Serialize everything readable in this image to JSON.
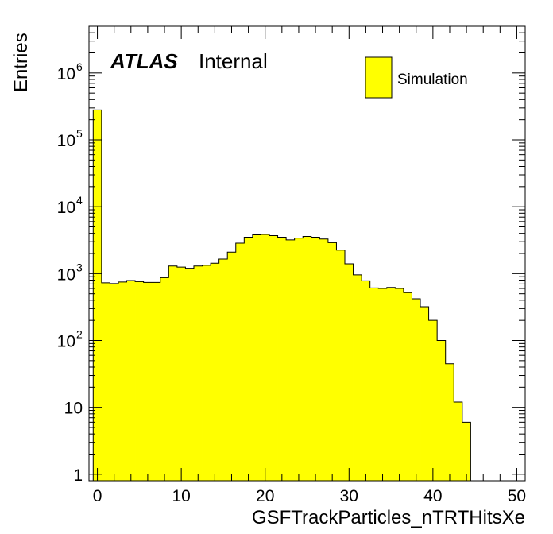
{
  "chart_data": {
    "type": "bar",
    "histogram": true,
    "xlabel": "GSFTrackParticles_nTRTHitsXe",
    "ylabel": "Entries",
    "experiment": "ATLAS",
    "status": "Internal",
    "xlim": [
      -1,
      51
    ],
    "ylim": [
      0.8,
      5000000
    ],
    "yscale": "log",
    "bin_width": 1,
    "x_ticks": [
      "0",
      "10",
      "20",
      "30",
      "40",
      "50"
    ],
    "y_ticks": [
      {
        "base": "1",
        "exp": ""
      },
      {
        "base": "10",
        "exp": ""
      },
      {
        "base": "10",
        "exp": "2"
      },
      {
        "base": "10",
        "exp": "3"
      },
      {
        "base": "10",
        "exp": "4"
      },
      {
        "base": "10",
        "exp": "5"
      },
      {
        "base": "10",
        "exp": "6"
      }
    ],
    "legend": {
      "position": "top-right",
      "entries": [
        {
          "label": "Simulation",
          "color": "#ffff00"
        }
      ]
    },
    "fill_color": "#ffff00",
    "line_color": "#000000",
    "series": [
      {
        "name": "Simulation",
        "x": [
          0,
          1,
          2,
          3,
          4,
          5,
          6,
          7,
          8,
          9,
          10,
          11,
          12,
          13,
          14,
          15,
          16,
          17,
          18,
          19,
          20,
          21,
          22,
          23,
          24,
          25,
          26,
          27,
          28,
          29,
          30,
          31,
          32,
          33,
          34,
          35,
          36,
          37,
          38,
          39,
          40,
          41,
          42,
          43,
          44
        ],
        "values": [
          280000,
          730,
          710,
          750,
          790,
          760,
          740,
          740,
          870,
          1300,
          1250,
          1200,
          1300,
          1330,
          1430,
          1650,
          2100,
          2850,
          3500,
          3800,
          3850,
          3700,
          3500,
          3200,
          3400,
          3600,
          3500,
          3300,
          2900,
          2250,
          1400,
          960,
          780,
          610,
          600,
          620,
          600,
          520,
          420,
          320,
          200,
          100,
          45,
          12,
          6
        ]
      }
    ]
  }
}
